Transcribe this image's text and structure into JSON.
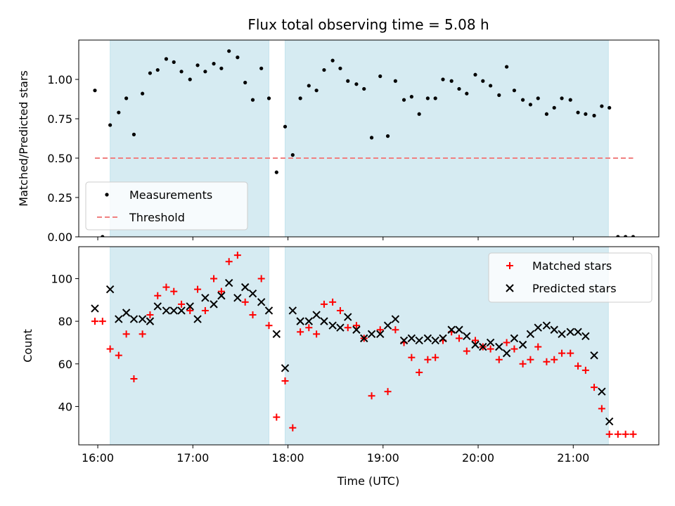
{
  "chart_data": [
    {
      "type": "scatter",
      "title": "Flux total observing time = 5.08 h",
      "xlabel": "",
      "ylabel": "Matched/Predicted stars",
      "xlim": [
        15.8,
        21.9
      ],
      "ylim": [
        0,
        1.25
      ],
      "yticks": [
        "0.00",
        "0.25",
        "0.50",
        "0.75",
        "1.00"
      ],
      "ytick_values": [
        0,
        0.25,
        0.5,
        0.75,
        1.0
      ],
      "shaded_intervals": [
        [
          16.13,
          17.8
        ],
        [
          17.97,
          21.37
        ]
      ],
      "shade_color": "#add8e6",
      "legend_position": "lower-left",
      "threshold": {
        "name": "Threshold",
        "value": 0.5,
        "x_range": [
          15.97,
          21.63
        ],
        "color": "#f08080"
      },
      "series": [
        {
          "name": "Measurements",
          "color": "#000000",
          "marker": "dot",
          "x": [
            15.97,
            16.05,
            16.13,
            16.22,
            16.3,
            16.38,
            16.47,
            16.55,
            16.63,
            16.72,
            16.8,
            16.88,
            16.97,
            17.05,
            17.13,
            17.22,
            17.3,
            17.38,
            17.47,
            17.55,
            17.63,
            17.72,
            17.8,
            17.88,
            17.97,
            18.05,
            18.13,
            18.22,
            18.3,
            18.38,
            18.47,
            18.55,
            18.63,
            18.72,
            18.8,
            18.88,
            18.97,
            19.05,
            19.13,
            19.22,
            19.3,
            19.38,
            19.47,
            19.55,
            19.63,
            19.72,
            19.8,
            19.88,
            19.97,
            20.05,
            20.13,
            20.22,
            20.3,
            20.38,
            20.47,
            20.55,
            20.63,
            20.72,
            20.8,
            20.88,
            20.97,
            21.05,
            21.13,
            21.22,
            21.3,
            21.38,
            21.47,
            21.55,
            21.63
          ],
          "y": [
            0.93,
            0.0,
            0.71,
            0.79,
            0.88,
            0.65,
            0.91,
            1.04,
            1.06,
            1.13,
            1.11,
            1.05,
            1.0,
            1.09,
            1.05,
            1.1,
            1.07,
            1.18,
            1.14,
            0.98,
            0.87,
            1.07,
            0.88,
            0.41,
            0.7,
            0.52,
            0.88,
            0.96,
            0.93,
            1.06,
            1.12,
            1.07,
            0.99,
            0.97,
            0.94,
            0.63,
            1.02,
            0.64,
            0.99,
            0.87,
            0.89,
            0.78,
            0.88,
            0.88,
            1.0,
            0.99,
            0.94,
            0.91,
            1.03,
            0.99,
            0.96,
            0.9,
            1.08,
            0.93,
            0.87,
            0.84,
            0.88,
            0.78,
            0.82,
            0.88,
            0.87,
            0.79,
            0.78,
            0.77,
            0.83,
            0.82,
            0.0,
            0.0,
            0.0
          ]
        }
      ]
    },
    {
      "type": "scatter",
      "title": "",
      "xlabel": "Time (UTC)",
      "ylabel": "Count",
      "xlim": [
        15.8,
        21.9
      ],
      "ylim": [
        22,
        115
      ],
      "xticks": [
        "16:00",
        "17:00",
        "18:00",
        "19:00",
        "20:00",
        "21:00"
      ],
      "xtick_values": [
        16,
        17,
        18,
        19,
        20,
        21
      ],
      "yticks": [
        "40",
        "60",
        "80",
        "100"
      ],
      "ytick_values": [
        40,
        60,
        80,
        100
      ],
      "shaded_intervals": [
        [
          16.13,
          17.8
        ],
        [
          17.97,
          21.37
        ]
      ],
      "shade_color": "#add8e6",
      "legend_position": "top-right",
      "series": [
        {
          "name": "Matched stars",
          "color": "#ff0000",
          "marker": "plus",
          "x": [
            15.97,
            16.05,
            16.13,
            16.22,
            16.3,
            16.38,
            16.47,
            16.55,
            16.63,
            16.72,
            16.8,
            16.88,
            16.97,
            17.05,
            17.13,
            17.22,
            17.3,
            17.38,
            17.47,
            17.55,
            17.63,
            17.72,
            17.8,
            17.88,
            17.97,
            18.05,
            18.13,
            18.22,
            18.3,
            18.38,
            18.47,
            18.55,
            18.63,
            18.72,
            18.8,
            18.88,
            18.97,
            19.05,
            19.13,
            19.22,
            19.3,
            19.38,
            19.47,
            19.55,
            19.63,
            19.72,
            19.8,
            19.88,
            19.97,
            20.05,
            20.13,
            20.22,
            20.3,
            20.38,
            20.47,
            20.55,
            20.63,
            20.72,
            20.8,
            20.88,
            20.97,
            21.05,
            21.13,
            21.22,
            21.3,
            21.38,
            21.47,
            21.55,
            21.63
          ],
          "y": [
            80,
            80,
            67,
            64,
            74,
            53,
            74,
            83,
            92,
            96,
            94,
            88,
            85,
            95,
            85,
            100,
            94,
            108,
            111,
            89,
            83,
            100,
            78,
            35,
            52,
            30,
            75,
            77,
            74,
            88,
            89,
            85,
            77,
            78,
            72,
            45,
            76,
            47,
            76,
            70,
            63,
            56,
            62,
            63,
            71,
            75,
            72,
            66,
            71,
            68,
            67,
            62,
            70,
            67,
            60,
            62,
            68,
            61,
            62,
            65,
            65,
            59,
            57,
            49,
            39,
            27,
            27,
            27,
            27
          ]
        },
        {
          "name": "Predicted stars",
          "color": "#000000",
          "marker": "x",
          "x": [
            15.97,
            16.13,
            16.22,
            16.3,
            16.38,
            16.47,
            16.55,
            16.63,
            16.72,
            16.8,
            16.88,
            16.97,
            17.05,
            17.13,
            17.22,
            17.3,
            17.38,
            17.47,
            17.55,
            17.63,
            17.72,
            17.8,
            17.88,
            17.97,
            18.05,
            18.13,
            18.22,
            18.3,
            18.38,
            18.47,
            18.55,
            18.63,
            18.72,
            18.8,
            18.88,
            18.97,
            19.05,
            19.13,
            19.22,
            19.3,
            19.38,
            19.47,
            19.55,
            19.63,
            19.72,
            19.8,
            19.88,
            19.97,
            20.05,
            20.13,
            20.22,
            20.3,
            20.38,
            20.47,
            20.55,
            20.63,
            20.72,
            20.8,
            20.88,
            20.97,
            21.05,
            21.13,
            21.22,
            21.3,
            21.38
          ],
          "y": [
            86,
            95,
            81,
            84,
            81,
            81,
            80,
            87,
            85,
            85,
            85,
            87,
            81,
            91,
            88,
            92,
            98,
            91,
            96,
            93,
            89,
            85,
            74,
            58,
            85,
            80,
            80,
            83,
            80,
            78,
            77,
            82,
            76,
            72,
            74,
            74,
            78,
            81,
            71,
            72,
            71,
            72,
            71,
            72,
            76,
            76,
            73,
            69,
            68,
            70,
            68,
            65,
            72,
            69,
            74,
            77,
            78,
            76,
            74,
            75,
            75,
            73,
            64,
            47,
            33
          ]
        }
      ]
    }
  ]
}
